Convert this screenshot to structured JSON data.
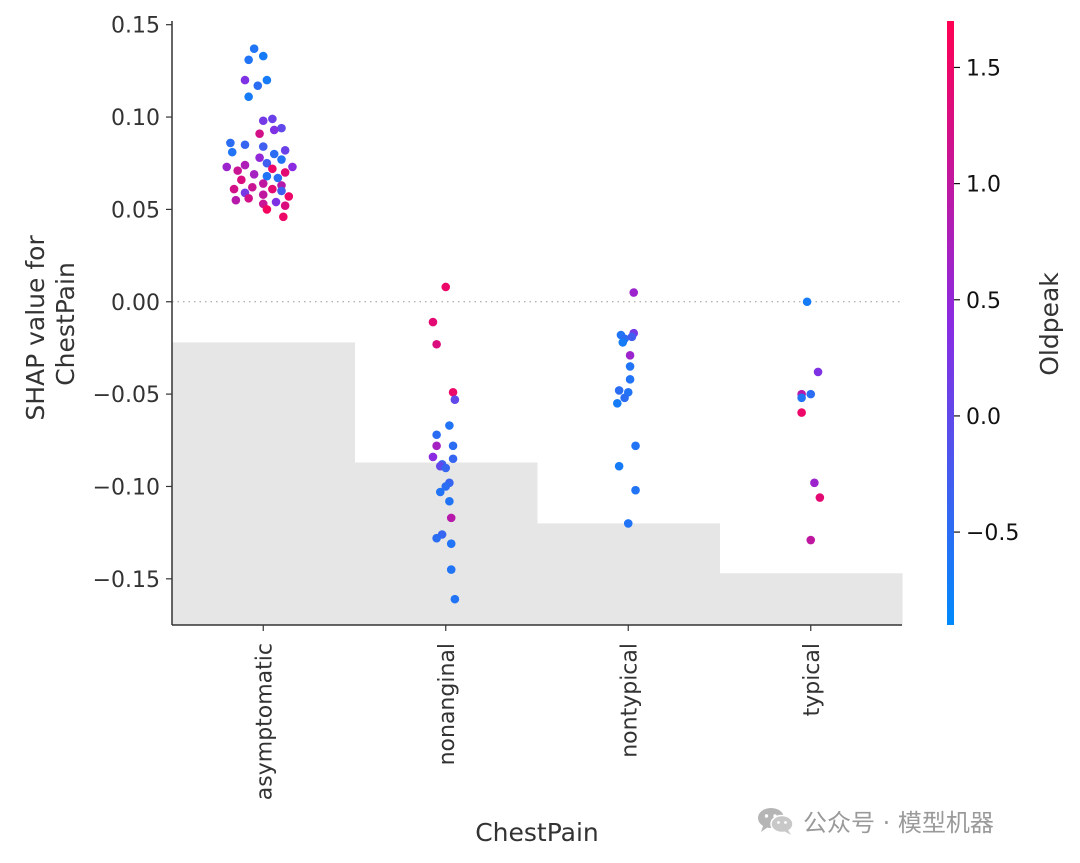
{
  "chart_data": {
    "type": "scatter",
    "title": "",
    "xlabel": "ChestPain",
    "ylabel": [
      "SHAP value for",
      "ChestPain"
    ],
    "ylim": [
      -0.175,
      0.152
    ],
    "yticks": [
      0.15,
      0.1,
      0.05,
      0.0,
      -0.05,
      -0.1,
      -0.15
    ],
    "ytick_labels": [
      "0.15",
      "0.10",
      "0.05",
      "0.00",
      "−0.05",
      "−0.10",
      "−0.15"
    ],
    "categories": [
      "asymptomatic",
      "nonanginal",
      "nontypical",
      "typical"
    ],
    "zero_line": true,
    "histogram_steps": [
      -0.022,
      -0.087,
      -0.12,
      -0.147
    ],
    "colorbar": {
      "label": "Oldpeak",
      "range": [
        -0.9,
        1.7
      ],
      "ticks": [
        1.5,
        1.0,
        0.5,
        0.0,
        -0.5
      ],
      "tick_labels": [
        "1.5",
        "1.0",
        "0.5",
        "0.0",
        "−0.5"
      ],
      "color_low": "#008afb",
      "color_mid": "#8a2be2",
      "color_high": "#ff0052"
    },
    "series": [
      {
        "name": "asymptomatic",
        "x_index": 0,
        "points": [
          [
            -0.05,
            0.137,
            -0.6
          ],
          [
            0.0,
            0.133,
            -0.7
          ],
          [
            -0.08,
            0.131,
            -0.6
          ],
          [
            0.02,
            0.12,
            -0.7
          ],
          [
            -0.1,
            0.12,
            0.3
          ],
          [
            -0.03,
            0.117,
            -0.5
          ],
          [
            -0.08,
            0.111,
            -0.7
          ],
          [
            0.05,
            0.099,
            0.1
          ],
          [
            0.0,
            0.098,
            0.2
          ],
          [
            0.1,
            0.094,
            0.0
          ],
          [
            0.06,
            0.093,
            0.3
          ],
          [
            -0.02,
            0.091,
            1.2
          ],
          [
            -0.18,
            0.086,
            -0.5
          ],
          [
            -0.1,
            0.085,
            -0.4
          ],
          [
            0.0,
            0.084,
            -0.3
          ],
          [
            0.12,
            0.082,
            0.1
          ],
          [
            -0.17,
            0.081,
            -0.6
          ],
          [
            0.06,
            0.08,
            -0.5
          ],
          [
            -0.02,
            0.078,
            0.5
          ],
          [
            0.1,
            0.077,
            -0.6
          ],
          [
            0.02,
            0.075,
            -0.3
          ],
          [
            -0.1,
            0.074,
            0.8
          ],
          [
            0.16,
            0.073,
            0.4
          ],
          [
            -0.2,
            0.073,
            0.6
          ],
          [
            0.05,
            0.072,
            1.5
          ],
          [
            -0.14,
            0.071,
            1.1
          ],
          [
            0.12,
            0.07,
            1.4
          ],
          [
            -0.05,
            0.069,
            0.7
          ],
          [
            0.02,
            0.068,
            -0.6
          ],
          [
            0.08,
            0.067,
            -0.5
          ],
          [
            -0.12,
            0.066,
            1.3
          ],
          [
            0.0,
            0.064,
            1.0
          ],
          [
            0.1,
            0.063,
            0.9
          ],
          [
            -0.06,
            0.062,
            1.1
          ],
          [
            -0.16,
            0.061,
            1.2
          ],
          [
            0.05,
            0.061,
            1.4
          ],
          [
            0.1,
            0.06,
            -0.3
          ],
          [
            -0.1,
            0.059,
            0.2
          ],
          [
            0.0,
            0.058,
            1.0
          ],
          [
            0.14,
            0.057,
            1.5
          ],
          [
            -0.08,
            0.056,
            1.2
          ],
          [
            -0.15,
            0.055,
            0.9
          ],
          [
            0.07,
            0.054,
            0.3
          ],
          [
            0.0,
            0.053,
            1.1
          ],
          [
            0.12,
            0.052,
            1.3
          ],
          [
            0.02,
            0.05,
            1.6
          ],
          [
            0.11,
            0.046,
            1.5
          ]
        ]
      },
      {
        "name": "nonanginal",
        "x_index": 1,
        "points": [
          [
            0.0,
            0.008,
            1.5
          ],
          [
            -0.07,
            -0.011,
            1.4
          ],
          [
            -0.05,
            -0.023,
            1.3
          ],
          [
            0.04,
            -0.049,
            1.5
          ],
          [
            0.05,
            -0.053,
            0.0
          ],
          [
            0.02,
            -0.067,
            -0.6
          ],
          [
            -0.05,
            -0.072,
            -0.5
          ],
          [
            0.04,
            -0.078,
            -0.5
          ],
          [
            -0.05,
            -0.078,
            0.7
          ],
          [
            -0.07,
            -0.084,
            0.4
          ],
          [
            0.04,
            -0.085,
            -0.4
          ],
          [
            -0.02,
            -0.088,
            -0.3
          ],
          [
            -0.03,
            -0.089,
            0.0
          ],
          [
            0.0,
            -0.09,
            -0.4
          ],
          [
            0.02,
            -0.098,
            -0.4
          ],
          [
            0.0,
            -0.1,
            -0.5
          ],
          [
            -0.03,
            -0.103,
            -0.6
          ],
          [
            0.02,
            -0.108,
            -0.6
          ],
          [
            0.03,
            -0.117,
            0.9
          ],
          [
            -0.02,
            -0.126,
            -0.4
          ],
          [
            -0.05,
            -0.128,
            -0.5
          ],
          [
            0.03,
            -0.131,
            -0.6
          ],
          [
            0.03,
            -0.145,
            -0.6
          ],
          [
            0.05,
            -0.161,
            -0.6
          ]
        ]
      },
      {
        "name": "nontypical",
        "x_index": 2,
        "points": [
          [
            0.03,
            0.005,
            0.6
          ],
          [
            -0.04,
            -0.018,
            -0.6
          ],
          [
            0.03,
            -0.017,
            0.2
          ],
          [
            -0.02,
            -0.02,
            -0.5
          ],
          [
            0.02,
            -0.019,
            -0.3
          ],
          [
            -0.03,
            -0.022,
            -0.7
          ],
          [
            0.01,
            -0.029,
            0.6
          ],
          [
            0.01,
            -0.035,
            -0.6
          ],
          [
            0.01,
            -0.042,
            -0.6
          ],
          [
            -0.05,
            -0.048,
            -0.5
          ],
          [
            0.0,
            -0.049,
            -0.6
          ],
          [
            -0.02,
            -0.052,
            -0.5
          ],
          [
            -0.06,
            -0.055,
            -0.7
          ],
          [
            0.04,
            -0.078,
            -0.6
          ],
          [
            -0.05,
            -0.089,
            -0.7
          ],
          [
            0.04,
            -0.102,
            -0.6
          ],
          [
            0.0,
            -0.12,
            -0.6
          ]
        ]
      },
      {
        "name": "typical",
        "x_index": 3,
        "points": [
          [
            -0.02,
            0.0,
            -0.7
          ],
          [
            0.04,
            -0.038,
            0.3
          ],
          [
            0.0,
            -0.05,
            -0.5
          ],
          [
            -0.05,
            -0.05,
            0.9
          ],
          [
            -0.05,
            -0.052,
            -0.6
          ],
          [
            -0.05,
            -0.06,
            1.5
          ],
          [
            0.02,
            -0.098,
            0.6
          ],
          [
            0.05,
            -0.106,
            1.4
          ],
          [
            0.0,
            -0.129,
            1.0
          ]
        ]
      }
    ]
  },
  "watermark": {
    "icon": "wechat-icon",
    "text": "公众号 · 模型机器"
  }
}
